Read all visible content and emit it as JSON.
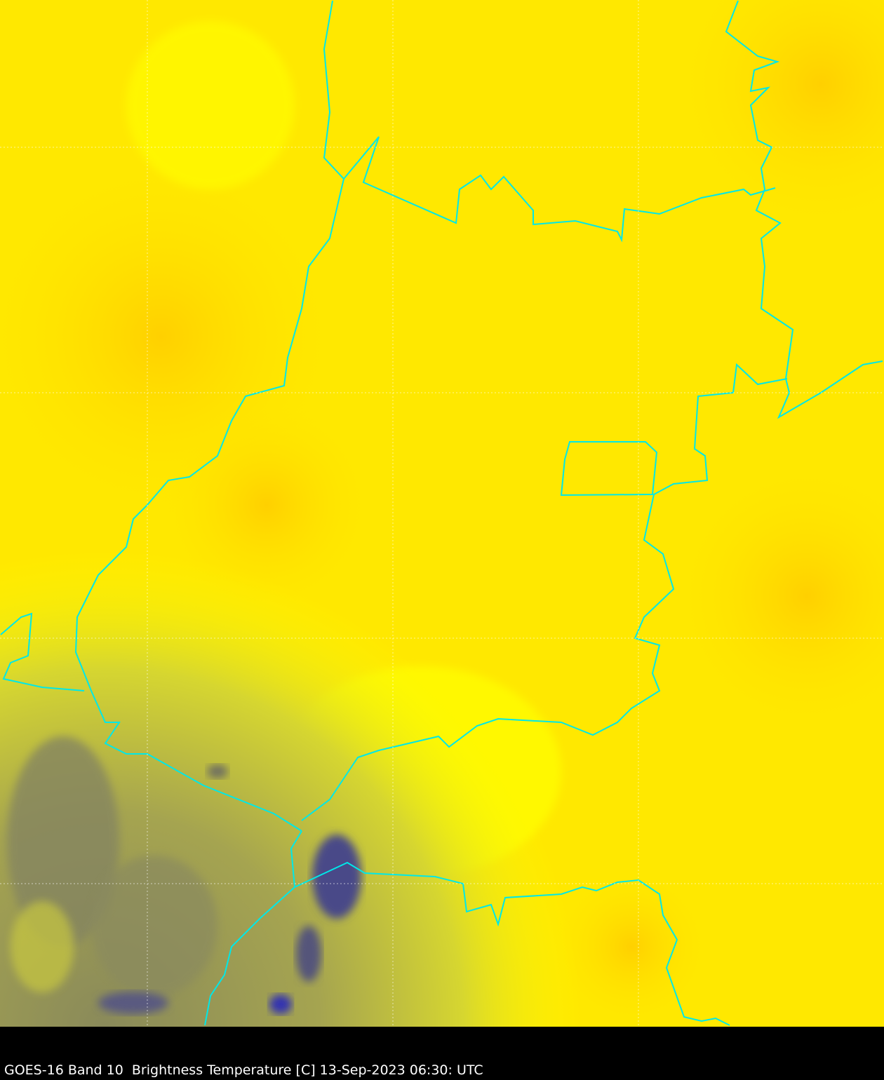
{
  "caption": "GOES-16 Band 10  Brightness Temperature [C] 13-Sep-2023 06:30: UTC",
  "colors": {
    "warm_yellow": "#ffff00",
    "orange_yellow": "#ffd400",
    "cool_olive": "#8a8a5a",
    "cold_blue": "#3a3a90",
    "border": "#00e8e8",
    "grid": "#ffffff",
    "caption_bg": "#000000"
  },
  "layers": [
    "brightness-temperature-raster",
    "political-borders",
    "lat-lon-grid"
  ]
}
